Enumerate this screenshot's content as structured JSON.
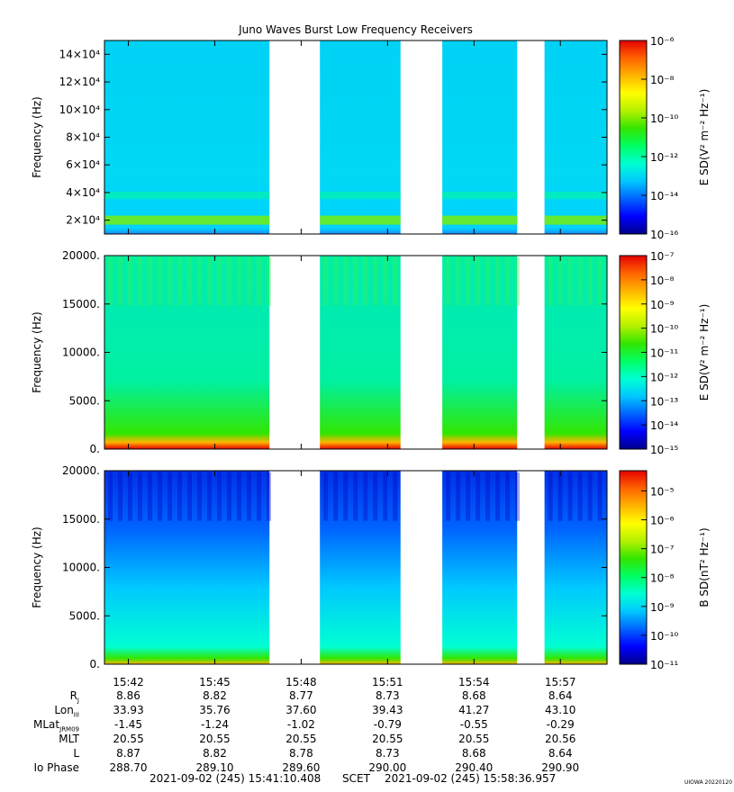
{
  "title": "Juno Waves Burst Low Frequency Receivers",
  "colors": {
    "scale": [
      "#00008c",
      "#0000ff",
      "#0064ff",
      "#00c8ff",
      "#00ffd2",
      "#00ff64",
      "#32e600",
      "#b4f000",
      "#ffff00",
      "#ffb400",
      "#ff6400",
      "#e60000"
    ]
  },
  "chart_data": [
    {
      "type": "heatmap",
      "name": "E high-frequency spectrogram",
      "ylabel": "Frequency (Hz)",
      "ylim": [
        10000,
        150000
      ],
      "yticks": [
        20000,
        40000,
        60000,
        80000,
        100000,
        120000,
        140000
      ],
      "ytick_labels": [
        "2×10⁴",
        "4×10⁴",
        "6×10⁴",
        "8×10⁴",
        "10×10⁴",
        "12×10⁴",
        "14×10⁴"
      ],
      "colorbar_label": "E SD(V² m⁻² Hz⁻¹)",
      "colorbar_log_range": [
        -16,
        -6
      ],
      "colorbar_ticks": [
        "10⁻⁶",
        "10⁻⁸",
        "10⁻¹⁰",
        "10⁻¹²",
        "10⁻¹⁴",
        "10⁻¹⁶"
      ],
      "colorbar_tick_exps": [
        -6,
        -8,
        -10,
        -12,
        -14,
        -16
      ]
    },
    {
      "type": "heatmap",
      "name": "E low-frequency spectrogram",
      "ylabel": "Frequency (Hz)",
      "ylim": [
        0,
        20000
      ],
      "yticks": [
        0,
        5000,
        10000,
        15000,
        20000
      ],
      "ytick_labels": [
        "0.",
        "5000.",
        "10000.",
        "15000.",
        "20000."
      ],
      "colorbar_label": "E SD(V² m⁻² Hz⁻¹)",
      "colorbar_log_range": [
        -15,
        -7
      ],
      "colorbar_ticks": [
        "10⁻⁷",
        "10⁻⁸",
        "10⁻⁹",
        "10⁻¹⁰",
        "10⁻¹¹",
        "10⁻¹²",
        "10⁻¹³",
        "10⁻¹⁴",
        "10⁻¹⁵"
      ],
      "colorbar_tick_exps": [
        -7,
        -8,
        -9,
        -10,
        -11,
        -12,
        -13,
        -14,
        -15
      ]
    },
    {
      "type": "heatmap",
      "name": "B low-frequency spectrogram",
      "ylabel": "Frequency (Hz)",
      "ylim": [
        0,
        20000
      ],
      "yticks": [
        0,
        5000,
        10000,
        15000,
        20000
      ],
      "ytick_labels": [
        "0.",
        "5000.",
        "10000.",
        "15000.",
        "20000."
      ],
      "colorbar_label": "B SD(nT² Hz⁻¹)",
      "colorbar_log_range": [
        -11,
        -4.3
      ],
      "colorbar_ticks": [
        "10⁻⁵",
        "10⁻⁶",
        "10⁻⁷",
        "10⁻⁸",
        "10⁻⁹",
        "10⁻¹⁰",
        "10⁻¹¹"
      ],
      "colorbar_tick_exps": [
        -5,
        -6,
        -7,
        -8,
        -9,
        -10,
        -11
      ]
    }
  ],
  "time_axis": {
    "start_min": 941.17,
    "end_min": 958.62,
    "tick_labels": [
      "15:42",
      "15:45",
      "15:48",
      "15:51",
      "15:54",
      "15:57"
    ],
    "tick_minutes": [
      942,
      945,
      948,
      951,
      954,
      957
    ],
    "data_intervals_min": [
      [
        941.17,
        946.9
      ],
      [
        948.65,
        951.45
      ],
      [
        952.9,
        955.5
      ],
      [
        956.45,
        958.62
      ]
    ]
  },
  "ephemeris": {
    "labels": [
      "R",
      "Lon",
      "MLat",
      "MLT",
      "L",
      "Io Phase"
    ],
    "label_subs": [
      "J",
      "III",
      "JRM09",
      "",
      "",
      ""
    ],
    "rows": [
      [
        "8.86",
        "8.82",
        "8.77",
        "8.73",
        "8.68",
        "8.64"
      ],
      [
        "33.93",
        "35.76",
        "37.60",
        "39.43",
        "41.27",
        "43.10"
      ],
      [
        "-1.45",
        "-1.24",
        "-1.02",
        "-0.79",
        "-0.55",
        "-0.29"
      ],
      [
        "20.55",
        "20.55",
        "20.55",
        "20.55",
        "20.55",
        "20.56"
      ],
      [
        "8.87",
        "8.82",
        "8.78",
        "8.73",
        "8.68",
        "8.64"
      ],
      [
        "288.70",
        "289.10",
        "289.60",
        "290.00",
        "290.40",
        "290.90"
      ]
    ]
  },
  "footer": {
    "start": "2021-09-02 (245) 15:41:10.408",
    "scet": "SCET",
    "end": "2021-09-02 (245) 15:58:36.957",
    "stamp": "UIOWA 20220120"
  }
}
